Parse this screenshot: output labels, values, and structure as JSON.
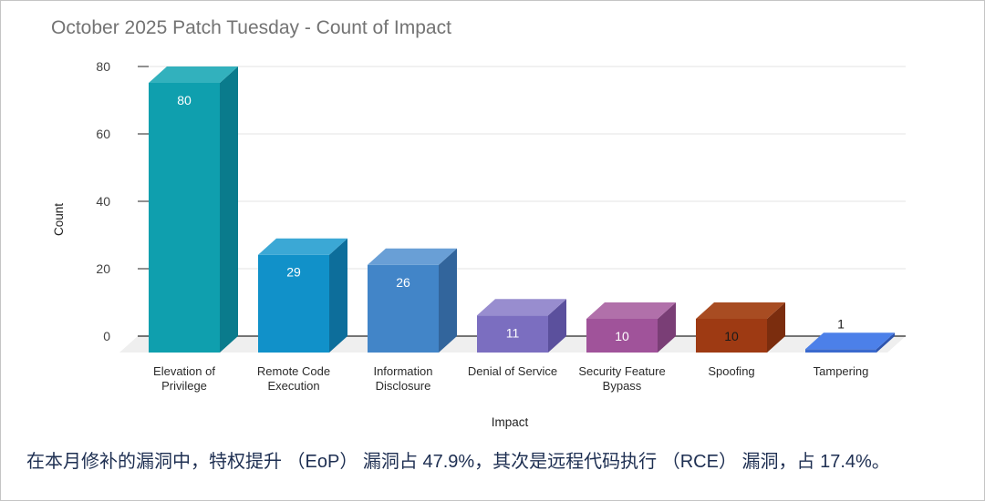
{
  "window": {
    "border_color": "#c4c4c4",
    "background": "#ffffff"
  },
  "chart": {
    "title": "October 2025 Patch Tuesday - Count of Impact",
    "title_color": "#737373"
  },
  "caption": {
    "text": "在本月修补的漏洞中，特权提升 （EoP） 漏洞占 47.9%，其次是远程代码执行 （RCE） 漏洞，占 17.4%。",
    "color": "#1e2f52"
  },
  "chart_data": {
    "type": "bar",
    "style": "3d",
    "title": "October 2025 Patch Tuesday - Count of Impact",
    "xlabel": "Impact",
    "ylabel": "Count",
    "ylim": [
      0,
      80
    ],
    "yticks": [
      0,
      20,
      40,
      60,
      80
    ],
    "grid": true,
    "legend": "none",
    "categories": [
      "Elevation of Privilege",
      "Remote Code Execution",
      "Information Disclosure",
      "Denial of Service",
      "Security Feature Bypass",
      "Spoofing",
      "Tampering"
    ],
    "values": [
      80,
      29,
      26,
      11,
      10,
      10,
      1
    ],
    "bars": [
      {
        "category": "Elevation of Privilege",
        "label_lines": [
          "Elevation of",
          "Privilege"
        ],
        "value": 80,
        "front": "#0f9fae",
        "top": "#32b1bd",
        "side": "#0a7b8c",
        "value_label_color": "#ffffff",
        "value_label_position": "inside"
      },
      {
        "category": "Remote Code Execution",
        "label_lines": [
          "Remote Code",
          "Execution"
        ],
        "value": 29,
        "front": "#1191c9",
        "top": "#3ba8d5",
        "side": "#0d6e9b",
        "value_label_color": "#ffffff",
        "value_label_position": "inside"
      },
      {
        "category": "Information Disclosure",
        "label_lines": [
          "Information",
          "Disclosure"
        ],
        "value": 26,
        "front": "#4285c8",
        "top": "#699fd6",
        "side": "#32659c",
        "value_label_color": "#ffffff",
        "value_label_position": "inside"
      },
      {
        "category": "Denial of Service",
        "label_lines": [
          "Denial of Service"
        ],
        "value": 11,
        "front": "#7b6ec0",
        "top": "#988dcf",
        "side": "#5b509d",
        "value_label_color": "#ffffff",
        "value_label_position": "inside"
      },
      {
        "category": "Security Feature Bypass",
        "label_lines": [
          "Security Feature",
          "Bypass"
        ],
        "value": 10,
        "front": "#a0539a",
        "top": "#b170aa",
        "side": "#7a3e76",
        "value_label_color": "#ffffff",
        "value_label_position": "inside"
      },
      {
        "category": "Spoofing",
        "label_lines": [
          "Spoofing"
        ],
        "value": 10,
        "front": "#9e3a13",
        "top": "#a84c22",
        "side": "#7b2d0e",
        "value_label_color": "#1a1a1a",
        "value_label_position": "inside"
      },
      {
        "category": "Tampering",
        "label_lines": [
          "Tampering"
        ],
        "value": 1,
        "front": "#3a6ace",
        "top": "#4c80e9",
        "side": "#2e54ad",
        "value_label_color": "#1a1a1a",
        "value_label_position": "above"
      }
    ],
    "axis_style": {
      "tick_label_color": "#424242",
      "category_label_color": "#2b2b2b",
      "axis_title_color": "#222222",
      "gridline_color": "#e3e3e3",
      "baseline_color": "#4a4a4a",
      "tick_stub_color": "#616161",
      "floor_color": "#efefef"
    }
  }
}
